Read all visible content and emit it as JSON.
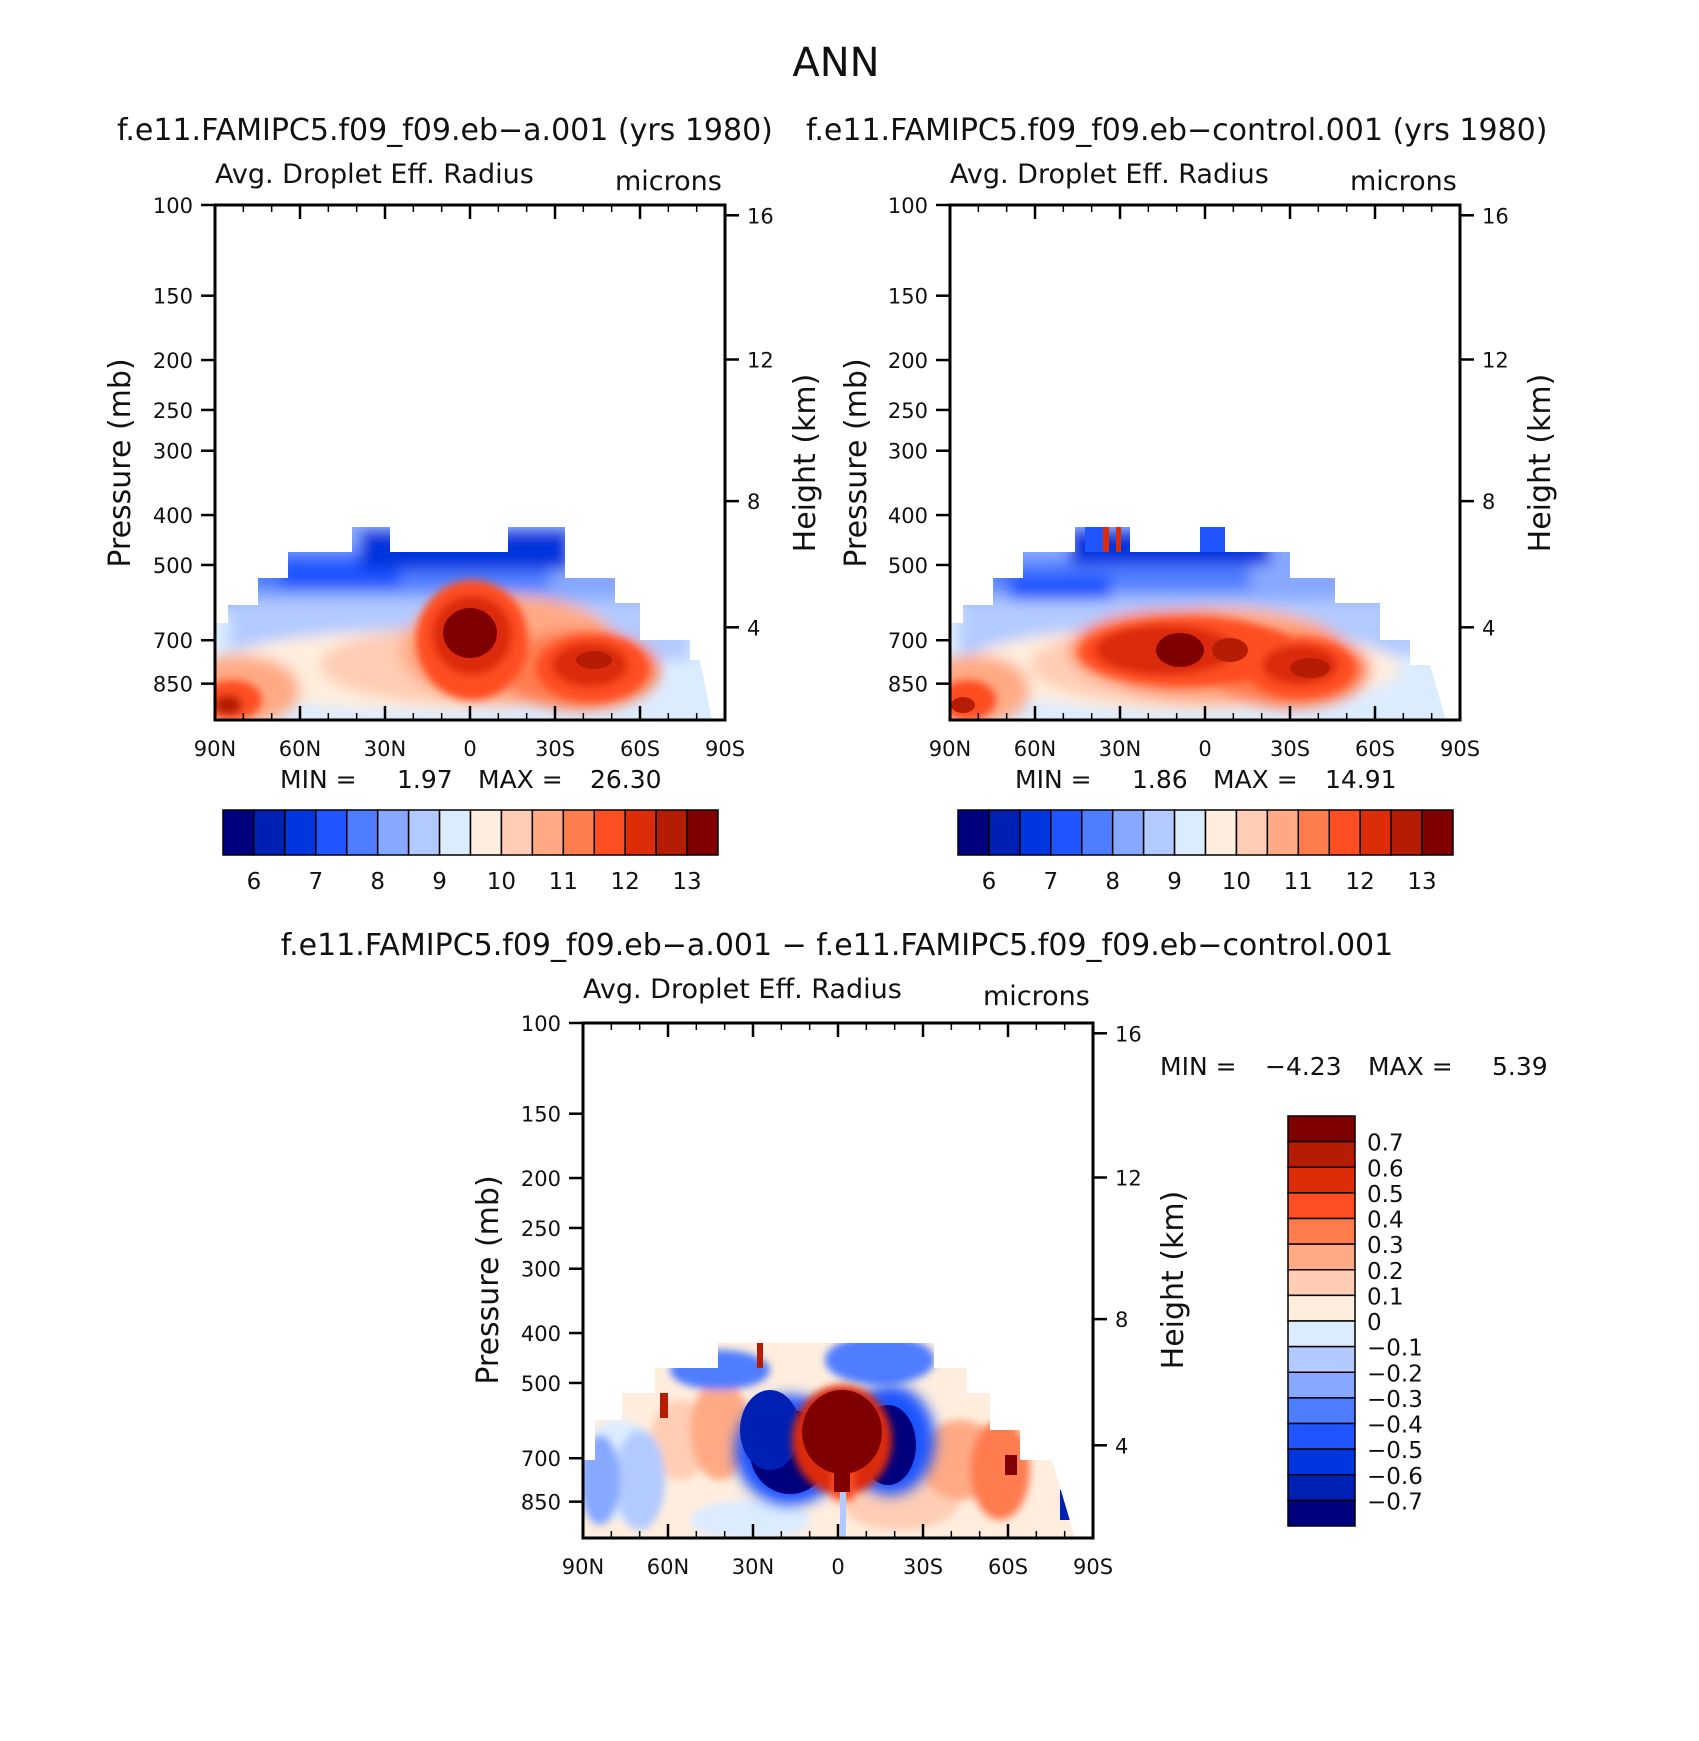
{
  "title": "ANN",
  "chart_data": [
    {
      "type": "heatmap",
      "case_title": "f.e11.FAMIPC5.f09_f09.eb−a.001 (yrs 1980)",
      "variable": "Avg. Droplet Eff. Radius",
      "units": "microns",
      "ylabel": "Pressure (mb)",
      "ylabel_right": "Height (km)",
      "x_ticks": [
        "90N",
        "60N",
        "30N",
        "0",
        "30S",
        "60S",
        "90S"
      ],
      "y_ticks": [
        100,
        150,
        200,
        250,
        300,
        400,
        500,
        700,
        850
      ],
      "y2_ticks": [
        16,
        12,
        8,
        4
      ],
      "stats": {
        "min_label": "MIN =",
        "min": "1.97",
        "max_label": "MAX =",
        "max": "26.30"
      },
      "colorbar": {
        "colors": [
          "#00007f",
          "#0020b4",
          "#0036dd",
          "#1f54ff",
          "#4f7dff",
          "#86a8ff",
          "#b2caff",
          "#dcecff",
          "#ffeede",
          "#ffcdb4",
          "#ffaa85",
          "#ff7c4f",
          "#ff4e22",
          "#dc2c08",
          "#b41d04",
          "#7f0000"
        ],
        "labels": [
          "6",
          "7",
          "8",
          "9",
          "10",
          "11",
          "12",
          "13"
        ]
      }
    },
    {
      "type": "heatmap",
      "case_title": "f.e11.FAMIPC5.f09_f09.eb−control.001 (yrs 1980)",
      "variable": "Avg. Droplet Eff. Radius",
      "units": "microns",
      "ylabel": "Pressure (mb)",
      "ylabel_right": "Height (km)",
      "x_ticks": [
        "90N",
        "60N",
        "30N",
        "0",
        "30S",
        "60S",
        "90S"
      ],
      "y_ticks": [
        100,
        150,
        200,
        250,
        300,
        400,
        500,
        700,
        850
      ],
      "y2_ticks": [
        16,
        12,
        8,
        4
      ],
      "stats": {
        "min_label": "MIN =",
        "min": "1.86",
        "max_label": "MAX =",
        "max": "14.91"
      },
      "colorbar": {
        "colors": [
          "#00007f",
          "#0020b4",
          "#0036dd",
          "#1f54ff",
          "#4f7dff",
          "#86a8ff",
          "#b2caff",
          "#dcecff",
          "#ffeede",
          "#ffcdb4",
          "#ffaa85",
          "#ff7c4f",
          "#ff4e22",
          "#dc2c08",
          "#b41d04",
          "#7f0000"
        ],
        "labels": [
          "6",
          "7",
          "8",
          "9",
          "10",
          "11",
          "12",
          "13"
        ]
      }
    },
    {
      "type": "heatmap",
      "case_title": "f.e11.FAMIPC5.f09_f09.eb−a.001 − f.e11.FAMIPC5.f09_f09.eb−control.001",
      "variable": "Avg. Droplet Eff. Radius",
      "units": "microns",
      "ylabel": "Pressure (mb)",
      "ylabel_right": "Height (km)",
      "x_ticks": [
        "90N",
        "60N",
        "30N",
        "0",
        "30S",
        "60S",
        "90S"
      ],
      "y_ticks": [
        100,
        150,
        200,
        250,
        300,
        400,
        500,
        700,
        850
      ],
      "y2_ticks": [
        16,
        12,
        8,
        4
      ],
      "stats": {
        "min_label": "MIN =",
        "min": "−4.23",
        "max_label": "MAX =",
        "max": "5.39"
      },
      "colorbar": {
        "colors": [
          "#7f0000",
          "#b41d04",
          "#dc2c08",
          "#ff4e22",
          "#ff7c4f",
          "#ffaa85",
          "#ffcdb4",
          "#ffeede",
          "#dcecff",
          "#b2caff",
          "#86a8ff",
          "#4f7dff",
          "#1f54ff",
          "#0036dd",
          "#0020b4",
          "#00007f"
        ],
        "labels": [
          "0.7",
          "0.6",
          "0.5",
          "0.4",
          "0.3",
          "0.2",
          "0.1",
          "0",
          "−0.1",
          "−0.2",
          "−0.3",
          "−0.4",
          "−0.5",
          "−0.6",
          "−0.7"
        ]
      }
    }
  ]
}
